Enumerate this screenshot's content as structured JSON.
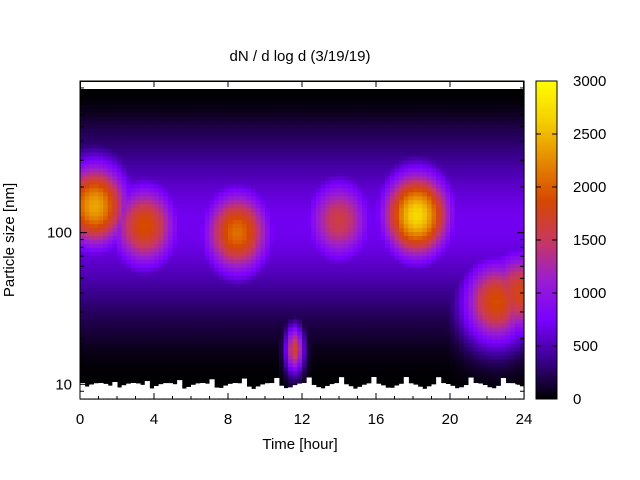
{
  "chart_data": {
    "type": "heatmap",
    "title": "dN / d log d (3/19/19)",
    "xlabel": "Time [hour]",
    "ylabel": "Particle size [nm]",
    "x_range": [
      0,
      24
    ],
    "x_ticks": [
      0,
      4,
      8,
      12,
      16,
      20,
      24
    ],
    "x_tick_labels": [
      "0",
      "4",
      "8",
      "12",
      "16",
      "20",
      "24"
    ],
    "y_scale": "log",
    "y_range": [
      8,
      1000
    ],
    "y_ticks": [
      10,
      100
    ],
    "y_tick_labels": [
      "10",
      "100"
    ],
    "colorbar": {
      "range": [
        0,
        3000
      ],
      "ticks": [
        0,
        500,
        1000,
        1500,
        2000,
        2500,
        3000
      ],
      "tick_labels": [
        "0",
        "500",
        "1000",
        "1500",
        "2000",
        "2500",
        "3000"
      ],
      "palette": [
        "#000000",
        "#3b0090",
        "#7a00ff",
        "#9a1ed0",
        "#c8385e",
        "#d64800",
        "#e58a00",
        "#f5cf00",
        "#ffff00"
      ]
    },
    "distribution_peaks": [
      {
        "time_h": 0.8,
        "size_nm": 150,
        "value": 2400
      },
      {
        "time_h": 3.5,
        "size_nm": 110,
        "value": 1900
      },
      {
        "time_h": 8.5,
        "size_nm": 100,
        "value": 2100
      },
      {
        "time_h": 11.6,
        "size_nm": 17,
        "value": 1700
      },
      {
        "time_h": 14.0,
        "size_nm": 120,
        "value": 1600
      },
      {
        "time_h": 18.2,
        "size_nm": 130,
        "value": 2700
      },
      {
        "time_h": 22.5,
        "size_nm": 35,
        "value": 1900
      },
      {
        "time_h": 23.8,
        "size_nm": 40,
        "value": 1800
      }
    ]
  }
}
